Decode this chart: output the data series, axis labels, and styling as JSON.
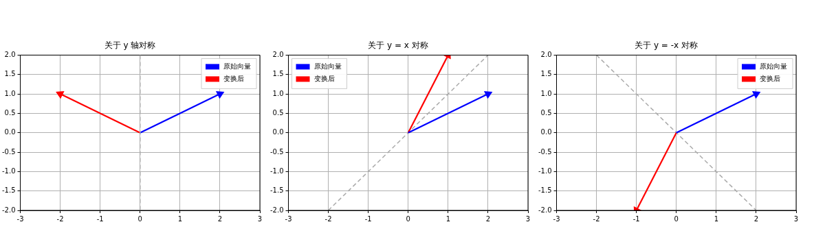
{
  "chart_data": [
    {
      "type": "line",
      "title": "关于 y 轴对称",
      "xlim": [
        -3,
        3
      ],
      "xticks": [
        -3,
        -2,
        -1,
        0,
        1,
        2,
        3
      ],
      "ylim": [
        -2,
        2
      ],
      "yticks": [
        {
          "value": -2,
          "label": "-2.0"
        },
        {
          "value": -1.5,
          "label": "-1.5"
        },
        {
          "value": -1,
          "label": "-1.0"
        },
        {
          "value": -0.5,
          "label": "-0.5"
        },
        {
          "value": 0,
          "label": "0.0"
        },
        {
          "value": 0.5,
          "label": "0.5"
        },
        {
          "value": 1,
          "label": "1.0"
        },
        {
          "value": 1.5,
          "label": "1.5"
        },
        {
          "value": 2,
          "label": "2.0"
        }
      ],
      "grid": true,
      "legend": "top right",
      "marker": "none",
      "series": [
        {
          "name": "原始向量",
          "color": "#0000ff",
          "marker": "triangle",
          "x": [
            0,
            2
          ],
          "values": [
            0,
            1
          ]
        },
        {
          "name": "变换后",
          "color": "#ff0000",
          "marker": "triangle",
          "x": [
            0,
            -2
          ],
          "values": [
            0,
            1
          ]
        }
      ],
      "ref_lines": [
        {
          "axis": "x",
          "value": 0,
          "color": "#aaaaaa",
          "line_style": "dashed"
        }
      ]
    },
    {
      "type": "line",
      "title": "关于 y = x 对称",
      "xlim": [
        -3,
        3
      ],
      "xticks": [
        -3,
        -2,
        -1,
        0,
        1,
        2,
        3
      ],
      "ylim": [
        -2,
        2
      ],
      "yticks": [
        {
          "value": -2,
          "label": "-2.0"
        },
        {
          "value": -1.5,
          "label": "-1.5"
        },
        {
          "value": -1,
          "label": "-1.0"
        },
        {
          "value": -0.5,
          "label": "-0.5"
        },
        {
          "value": 0,
          "label": "0.0"
        },
        {
          "value": 0.5,
          "label": "0.5"
        },
        {
          "value": 1,
          "label": "1.0"
        },
        {
          "value": 1.5,
          "label": "1.5"
        },
        {
          "value": 2,
          "label": "2.0"
        }
      ],
      "grid": true,
      "legend": "top left",
      "marker": "none",
      "series": [
        {
          "name": "原始向量",
          "color": "#0000ff",
          "marker": "triangle",
          "x": [
            0,
            2
          ],
          "values": [
            0,
            1
          ]
        },
        {
          "name": "变换后",
          "color": "#ff0000",
          "marker": "triangle",
          "x": [
            0,
            1
          ],
          "values": [
            0,
            2
          ]
        },
        {
          "color": "#aaaaaa",
          "line_style": "dashed",
          "x": [
            -2,
            2
          ],
          "values": [
            -2,
            2
          ]
        }
      ]
    },
    {
      "type": "line",
      "title": "关于 y = -x 对称",
      "xlim": [
        -3,
        3
      ],
      "xticks": [
        -3,
        -2,
        -1,
        0,
        1,
        2,
        3
      ],
      "ylim": [
        -2,
        2
      ],
      "yticks": [
        {
          "value": -2,
          "label": "-2.0"
        },
        {
          "value": -1.5,
          "label": "-1.5"
        },
        {
          "value": -1,
          "label": "-1.0"
        },
        {
          "value": -0.5,
          "label": "-0.5"
        },
        {
          "value": 0,
          "label": "0.0"
        },
        {
          "value": 0.5,
          "label": "0.5"
        },
        {
          "value": 1,
          "label": "1.0"
        },
        {
          "value": 1.5,
          "label": "1.5"
        },
        {
          "value": 2,
          "label": "2.0"
        }
      ],
      "grid": true,
      "legend": "top right",
      "marker": "none",
      "series": [
        {
          "name": "原始向量",
          "color": "#0000ff",
          "marker": "triangle",
          "x": [
            0,
            2
          ],
          "values": [
            0,
            1
          ]
        },
        {
          "name": "变换后",
          "color": "#ff0000",
          "marker": "triangle",
          "x": [
            0,
            -1
          ],
          "values": [
            0,
            -2
          ]
        },
        {
          "color": "#aaaaaa",
          "line_style": "dashed",
          "x": [
            -2,
            2
          ],
          "values": [
            2,
            -2
          ]
        }
      ]
    }
  ]
}
